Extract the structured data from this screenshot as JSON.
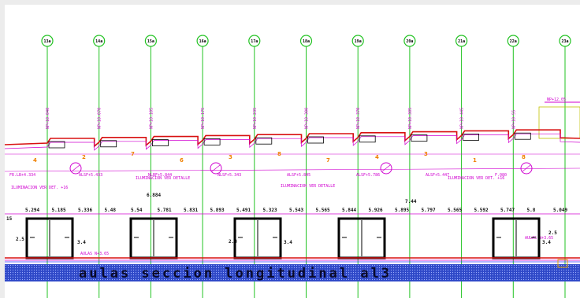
{
  "drawing": {
    "title": "aulas seccion longitudinal al3",
    "grid_axes": [
      "13a",
      "14a",
      "15a",
      "16a",
      "17a",
      "18a",
      "19a",
      "20a",
      "21a",
      "22a",
      "23a"
    ],
    "level_labels": [
      "NP+10.040",
      "NP+10.070",
      "NP+10.105",
      "NP+10.175",
      "NP+10.235",
      "NP+10.300",
      "NP+10.370",
      "NP+10.385",
      "NP+10.445",
      "NP+10.55"
    ],
    "top_right_level": "NP+12.05",
    "dimensions_row": [
      "5.294",
      "5.185",
      "5.336",
      "5.48",
      "5.54",
      "5.781",
      "5.831",
      "5.893",
      "5.491",
      "5.323",
      "5.543",
      "5.565",
      "5.844",
      "5.926",
      "5.895",
      "5.797",
      "5.565",
      "5.592",
      "5.747",
      "5.8",
      "5.049"
    ],
    "dimensions_extra": [
      "15",
      "6.884",
      "7.44",
      "2.5",
      "3.4",
      "2.8",
      "3.4",
      "3.4",
      "2.5"
    ],
    "orange_markers": [
      "4",
      "2",
      "7",
      "6",
      "3",
      "8",
      "7",
      "4",
      "3",
      "1",
      "8"
    ],
    "notes": [
      "ILUMINACION VER DET. +16",
      "ILUMINACION VER DETALLE",
      "ILUMINACION VER DETALLE",
      "ILUMINACION VER DET. +16",
      "AULAS N+3.65",
      "AULAS N+3.65"
    ],
    "small_labels": [
      "FR.LB+4.334",
      "ALSF+5.433",
      "NLBF+5.844",
      "NLSF+5.343",
      "ALSF+5.845",
      "ALSF+5.786",
      "ALSF+5.447",
      "F.080"
    ]
  },
  "colors": {
    "background": "#ffffff",
    "frame": "#ececec",
    "grid": "#22c322",
    "magenta": "#d000d0",
    "red": "#d81010",
    "orange": "#f08000",
    "title_band": "#2f49c8"
  }
}
